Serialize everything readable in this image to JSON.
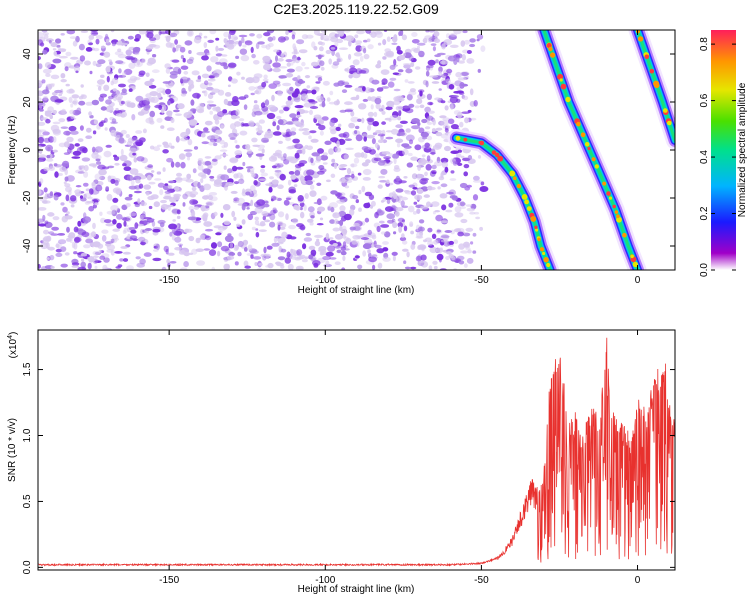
{
  "title": "C2E3.2025.119.22.52.G09",
  "colors": {
    "trace": "#e8312e",
    "speckle_light": "#d8c8f0",
    "speckle_mid": "#a478e6",
    "speckle_dark": "#7a2ee0"
  },
  "chart_data": [
    {
      "type": "heatmap",
      "xlabel": "Height of straight line (km)",
      "ylabel": "Frequency (Hz)",
      "xlim": [
        -192,
        12
      ],
      "ylim": [
        -50,
        50
      ],
      "xticks": [
        -150,
        -100,
        -50,
        0
      ],
      "xtick_labels": [
        "-150",
        "-100",
        "-50",
        "0"
      ],
      "yticks": [
        -40,
        -20,
        0,
        20,
        40
      ],
      "ytick_labels": [
        "-40",
        "-20",
        "0",
        "20",
        "40"
      ],
      "noise_region_x": [
        -192,
        -55
      ],
      "features": [
        {
          "points": [
            [
              -58,
              5
            ],
            [
              -50,
              3
            ],
            [
              -45,
              -2
            ],
            [
              -40,
              -10
            ],
            [
              -36,
              -20
            ],
            [
              -33,
              -30
            ],
            [
              -31,
              -40
            ],
            [
              -28,
              -50
            ]
          ]
        },
        {
          "points": [
            [
              -30,
              50
            ],
            [
              -26,
              35
            ],
            [
              -22,
              20
            ],
            [
              -17,
              5
            ],
            [
              -12,
              -10
            ],
            [
              -7,
              -25
            ],
            [
              -3,
              -40
            ],
            [
              0,
              -50
            ]
          ]
        },
        {
          "points": [
            [
              0,
              50
            ],
            [
              4,
              35
            ],
            [
              8,
              20
            ],
            [
              12,
              4
            ]
          ]
        }
      ],
      "colorbar": {
        "label": "Normalized spectral amplitude",
        "range": [
          0,
          0.85
        ],
        "ticks": [
          0.0,
          0.2,
          0.4,
          0.6,
          0.8
        ],
        "tick_labels": [
          "0.0",
          "0.2",
          "0.4",
          "0.6",
          "0.8"
        ]
      }
    },
    {
      "type": "line",
      "xlabel": "Height of straight line (km)",
      "ylabel": "SNR (10 * v/v)",
      "multiplier_label": "(x10",
      "multiplier_exp": "4",
      "multiplier_close": ")",
      "xlim": [
        -192,
        12
      ],
      "ylim": [
        -0.02,
        1.8
      ],
      "xticks": [
        -150,
        -100,
        -50,
        0
      ],
      "xtick_labels": [
        "-150",
        "-100",
        "-50",
        "0"
      ],
      "yticks": [
        0.0,
        0.5,
        1.0,
        1.5
      ],
      "ytick_labels": [
        "0.0",
        "0.5",
        "1.0",
        "1.5"
      ],
      "series": [
        {
          "x": [
            -192,
            -150,
            -100,
            -60,
            -50,
            -45,
            -42,
            -40,
            -38,
            -36,
            -34,
            -32,
            -30,
            -28,
            -25,
            -22,
            -20,
            -18,
            -15,
            -12,
            -10,
            -8,
            -5,
            -2,
            0,
            3,
            6,
            9,
            12
          ],
          "y": [
            0.02,
            0.02,
            0.02,
            0.02,
            0.03,
            0.07,
            0.15,
            0.22,
            0.35,
            0.5,
            0.62,
            0.55,
            0.75,
            1.45,
            1.7,
            1.1,
            1.2,
            1.0,
            1.25,
            1.15,
            1.8,
            1.2,
            1.1,
            1.0,
            1.3,
            1.25,
            1.5,
            1.55,
            1.1
          ]
        }
      ]
    }
  ]
}
